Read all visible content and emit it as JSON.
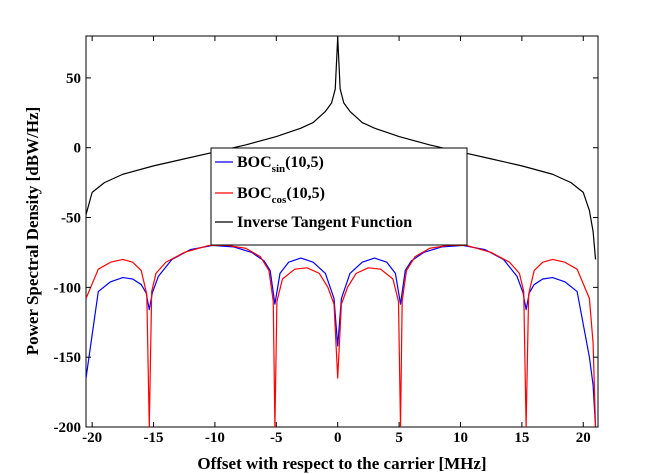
{
  "chart_data": {
    "type": "line",
    "title": "",
    "xlabel": "Offset with respect to the carrier [MHz]",
    "ylabel": "Power Spectral Density [dBW/Hz]",
    "xlim": [
      -20.5,
      21.2
    ],
    "ylim": [
      -200,
      80
    ],
    "xticks": [
      -20,
      -15,
      -10,
      -5,
      0,
      5,
      10,
      15,
      20
    ],
    "yticks": [
      -200,
      -150,
      -100,
      -50,
      0,
      50
    ],
    "legend_position": "center",
    "series": [
      {
        "name": "BOC_sin(10,5)",
        "legend_main": "BOC",
        "legend_sub": "sin",
        "legend_tail": "(10,5)",
        "color": "#0000ff",
        "note_shape": "sin-phased BOC spectrum, nulls at multiples of 5.115 MHz, peaks ~ -70 at ±10 MHz",
        "x": [
          -20.5,
          -19.5,
          -18.5,
          -17.5,
          -16.7,
          -16.0,
          -15.6,
          -15.345,
          -15.1,
          -14.6,
          -13.5,
          -12.0,
          -10.2,
          -8.5,
          -7.0,
          -6.0,
          -5.5,
          -5.115,
          -4.7,
          -4.0,
          -3.0,
          -2.0,
          -1.0,
          -0.3,
          0,
          0.3,
          1.0,
          2.0,
          3.0,
          4.0,
          4.7,
          5.115,
          5.5,
          6.0,
          7.0,
          8.5,
          10.2,
          12.0,
          13.5,
          14.6,
          15.1,
          15.345,
          15.6,
          16.0,
          16.7,
          17.5,
          18.5,
          19.5,
          20.5,
          20.8,
          21.0
        ],
        "y": [
          -165,
          -103,
          -96,
          -93,
          -94,
          -98,
          -104,
          -116,
          -104,
          -92,
          -80,
          -73,
          -70,
          -71,
          -75,
          -81,
          -88,
          -112,
          -90,
          -82,
          -79,
          -82,
          -90,
          -108,
          -142,
          -108,
          -90,
          -82,
          -79,
          -82,
          -90,
          -112,
          -88,
          -81,
          -75,
          -71,
          -70,
          -73,
          -80,
          -92,
          -104,
          -116,
          -104,
          -98,
          -94,
          -93,
          -96,
          -103,
          -150,
          -170,
          -200
        ]
      },
      {
        "name": "BOC_cos(10,5)",
        "legend_main": "BOC",
        "legend_sub": "cos",
        "legend_tail": "(10,5)",
        "color": "#ff0000",
        "note_shape": "cos-phased BOC spectrum, deep nulls near ±5.1 and ±15.3 MHz",
        "x": [
          -20.5,
          -19.5,
          -18.5,
          -17.5,
          -16.7,
          -16.0,
          -15.55,
          -15.345,
          -15.15,
          -14.8,
          -14.0,
          -12.5,
          -10.5,
          -9.0,
          -7.5,
          -6.3,
          -5.6,
          -5.25,
          -5.115,
          -4.95,
          -4.5,
          -3.5,
          -2.5,
          -1.5,
          -0.8,
          -0.3,
          0,
          0.3,
          0.8,
          1.5,
          2.5,
          3.5,
          4.5,
          4.95,
          5.115,
          5.25,
          5.6,
          6.3,
          7.5,
          9.0,
          10.5,
          12.5,
          14.0,
          14.8,
          15.15,
          15.345,
          15.55,
          16.0,
          16.7,
          17.5,
          18.5,
          19.5,
          20.5,
          20.8,
          21.0
        ],
        "y": [
          -108,
          -87,
          -82,
          -80,
          -82,
          -88,
          -105,
          -200,
          -103,
          -90,
          -82,
          -75,
          -70,
          -70,
          -72,
          -78,
          -88,
          -110,
          -200,
          -110,
          -94,
          -87,
          -86,
          -90,
          -100,
          -112,
          -165,
          -112,
          -100,
          -90,
          -86,
          -87,
          -94,
          -110,
          -200,
          -110,
          -88,
          -78,
          -72,
          -70,
          -70,
          -75,
          -82,
          -90,
          -103,
          -200,
          -105,
          -88,
          -82,
          -80,
          -82,
          -87,
          -108,
          -140,
          -200
        ]
      },
      {
        "name": "Inverse Tangent Function",
        "legend_main": "Inverse Tangent Function",
        "legend_sub": "",
        "legend_tail": "",
        "color": "#000000",
        "note_shape": "symmetric cusp peaking at the carrier, steep drop at the band edges",
        "x": [
          -20.5,
          -20.0,
          -19.0,
          -17.5,
          -15.0,
          -12.5,
          -10.0,
          -7.5,
          -5.0,
          -3.0,
          -2.0,
          -1.0,
          -0.5,
          -0.2,
          0,
          0.2,
          0.5,
          1.0,
          2.0,
          3.0,
          5.0,
          7.5,
          10.0,
          12.5,
          15.0,
          17.5,
          19.0,
          20.0,
          20.5,
          20.8,
          21.0
        ],
        "y": [
          -48,
          -32,
          -25,
          -19,
          -13,
          -8,
          -3,
          2,
          8,
          14,
          18,
          26,
          32,
          42,
          79,
          42,
          32,
          26,
          18,
          14,
          8,
          2,
          -3,
          -8,
          -13,
          -19,
          -25,
          -32,
          -45,
          -60,
          -80
        ]
      }
    ]
  }
}
